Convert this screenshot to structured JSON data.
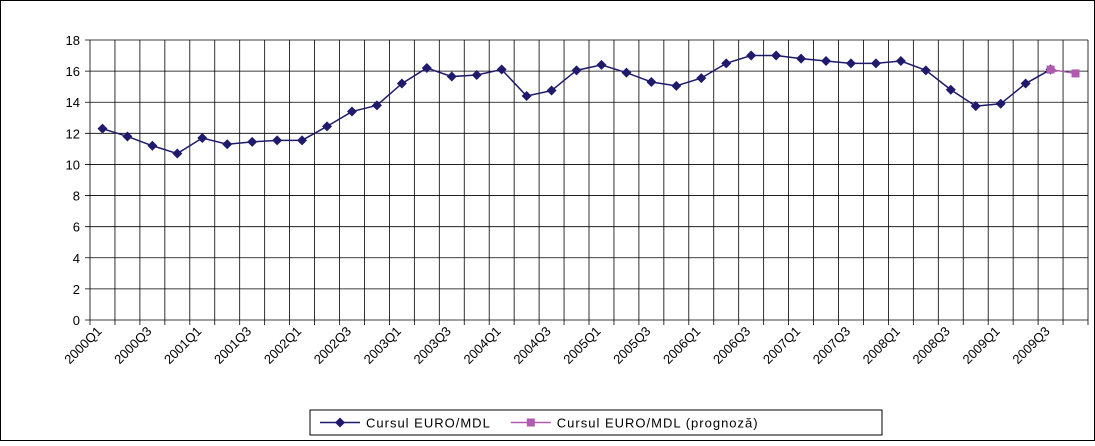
{
  "chart_data": {
    "type": "line",
    "categories": [
      "2000Q1",
      null,
      "2000Q3",
      null,
      "2001Q1",
      null,
      "2001Q3",
      null,
      "2002Q1",
      null,
      "2002Q3",
      null,
      "2003Q1",
      null,
      "2003Q3",
      null,
      "2004Q1",
      null,
      "2004Q3",
      null,
      "2005Q1",
      null,
      "2005Q3",
      null,
      "2006Q1",
      null,
      "2006Q3",
      null,
      "2007Q1",
      null,
      "2007Q3",
      null,
      "2008Q1",
      null,
      "2008Q3",
      null,
      "2009Q1",
      null,
      "2009Q3",
      null
    ],
    "series": [
      {
        "name": "Cursul EURO/MDL",
        "color": "#1f1a6b",
        "marker": "diamond",
        "values": [
          12.3,
          11.8,
          11.2,
          10.7,
          11.7,
          11.3,
          11.45,
          11.55,
          11.55,
          12.45,
          13.4,
          13.8,
          15.2,
          16.2,
          15.65,
          15.75,
          16.1,
          14.4,
          14.75,
          16.05,
          16.4,
          15.9,
          15.3,
          15.05,
          15.55,
          16.5,
          17.0,
          17.0,
          16.8,
          16.65,
          16.5,
          16.5,
          16.65,
          16.05,
          14.8,
          13.75,
          13.9,
          15.2,
          16.1,
          null
        ]
      },
      {
        "name": "Cursul EURO/MDL (prognoză)",
        "color": "#b05ab0",
        "marker": "square",
        "values": [
          null,
          null,
          null,
          null,
          null,
          null,
          null,
          null,
          null,
          null,
          null,
          null,
          null,
          null,
          null,
          null,
          null,
          null,
          null,
          null,
          null,
          null,
          null,
          null,
          null,
          null,
          null,
          null,
          null,
          null,
          null,
          null,
          null,
          null,
          null,
          null,
          null,
          null,
          16.1,
          15.85
        ]
      }
    ],
    "ylim": [
      0,
      18
    ],
    "yticks": [
      0,
      2,
      4,
      6,
      8,
      10,
      12,
      14,
      16,
      18
    ],
    "grid": true,
    "legend": "bottom"
  }
}
